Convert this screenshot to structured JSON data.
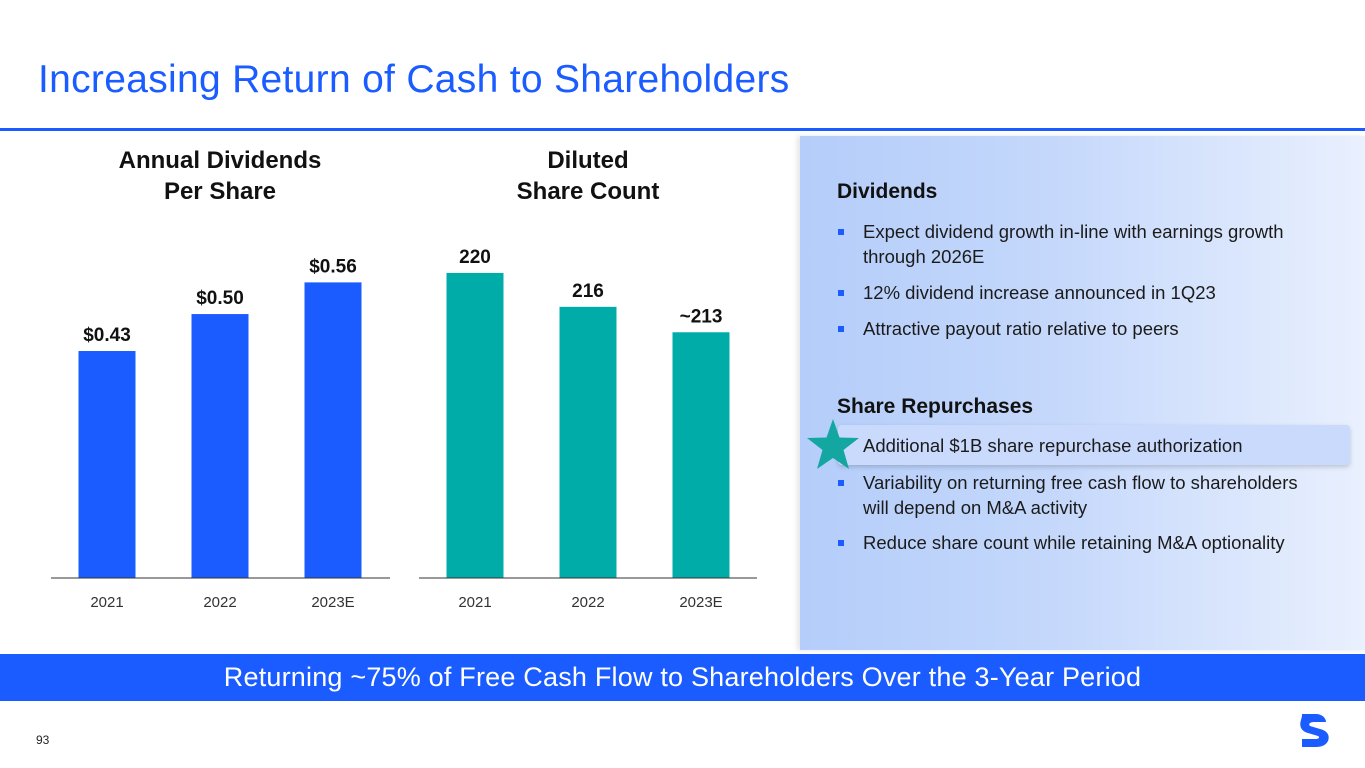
{
  "slide": {
    "title": "Increasing Return of Cash to Shareholders",
    "banner": "Returning ~75% of Free Cash Flow to Shareholders Over the 3-Year Period",
    "page_number": "93"
  },
  "colors": {
    "brand_blue": "#1a5cff",
    "teal": "#00aca8"
  },
  "chart_data": [
    {
      "type": "bar",
      "title_lines": [
        "Annual Dividends",
        "Per Share"
      ],
      "categories": [
        "2021",
        "2022",
        "2023E"
      ],
      "values": [
        0.43,
        0.5,
        0.56
      ],
      "data_labels": [
        "$0.43",
        "$0.50",
        "$0.56"
      ],
      "ylim": [
        0,
        0.61
      ],
      "color": "#1a5cff",
      "grid": false
    },
    {
      "type": "bar",
      "title_lines": [
        "Diluted",
        "Share Count"
      ],
      "categories": [
        "2021",
        "2022",
        "2023E"
      ],
      "values": [
        220,
        216,
        213
      ],
      "data_labels": [
        "220",
        "216",
        "~213"
      ],
      "ylim": [
        184,
        222
      ],
      "color": "#00aca8",
      "grid": false
    }
  ],
  "panel": {
    "dividends": {
      "heading": "Dividends",
      "bullets": [
        "Expect dividend growth in-line with earnings growth through 2026E",
        "12% dividend increase announced in 1Q23",
        "Attractive payout ratio relative to peers"
      ]
    },
    "repurchases": {
      "heading": "Share Repurchases",
      "bullets": [
        "Additional $1B share repurchase authorization",
        "Variability on returning free cash flow to shareholders will depend on M&A activity",
        "Reduce share count while retaining M&A optionality"
      ],
      "highlighted_index": 0,
      "highlight_icon": "star-icon"
    }
  }
}
